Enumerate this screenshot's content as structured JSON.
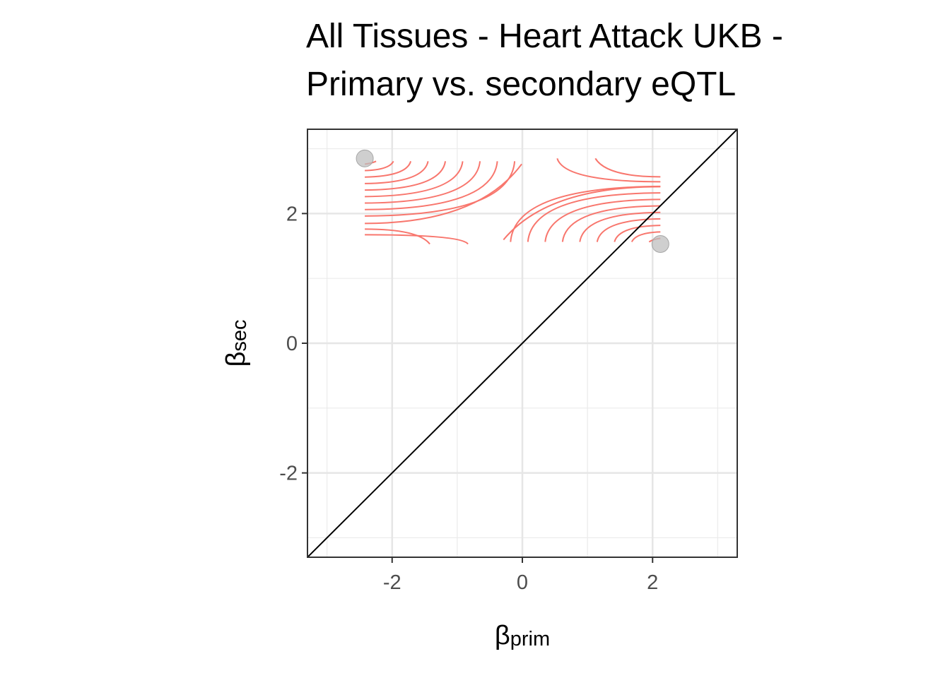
{
  "chart_data": {
    "type": "scatter",
    "title_lines": [
      "All Tissues - Heart Attack UKB -",
      "Primary vs. secondary eQTL"
    ],
    "xlabel": {
      "symbol": "β",
      "subscript": "prim"
    },
    "ylabel": {
      "symbol": "β",
      "subscript": "sec"
    },
    "xlim": [
      -3.3,
      3.3
    ],
    "ylim": [
      -3.3,
      3.3
    ],
    "x_ticks": [
      -2,
      0,
      2
    ],
    "y_ticks": [
      -2,
      0,
      2
    ],
    "x_tick_labels": [
      "-2",
      "0",
      "2"
    ],
    "y_tick_labels": [
      "-2",
      "0",
      "2"
    ],
    "grid": true,
    "reference_line": {
      "type": "identity",
      "slope": 1,
      "intercept": 0,
      "color": "#000000"
    },
    "points": [
      {
        "x": -2.42,
        "y": 2.85
      },
      {
        "x": 2.12,
        "y": 1.53
      }
    ],
    "point_color": "#bfbfbf",
    "density_contours": {
      "color": "#f8766d",
      "x_range": [
        -2.42,
        2.12
      ],
      "y_range": [
        1.53,
        2.85
      ]
    }
  }
}
